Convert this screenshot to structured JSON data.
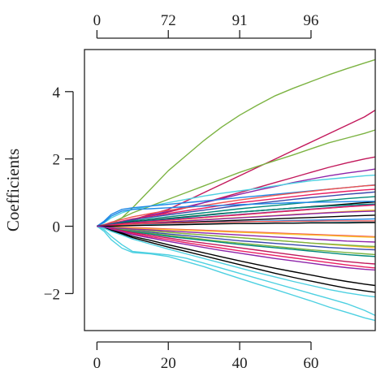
{
  "chart_data": {
    "type": "line",
    "title": "",
    "xlabel": "",
    "ylabel": "Coefficients",
    "xlim": [
      -3.5,
      78
    ],
    "ylim": [
      -3.1,
      5.25
    ],
    "x_ticks": [
      0,
      20,
      40,
      60
    ],
    "y_ticks": [
      -2,
      0,
      2,
      4
    ],
    "top_axis": {
      "tick_positions": [
        0,
        20,
        40,
        60
      ],
      "tick_labels": [
        "0",
        "72",
        "91",
        "96"
      ]
    },
    "grid": false,
    "legend": "none",
    "x": [
      0,
      2,
      4,
      7,
      10,
      15,
      20,
      25,
      30,
      35,
      40,
      45,
      50,
      55,
      60,
      65,
      70,
      75,
      78
    ],
    "series": [
      {
        "color": "#7cb342",
        "values": [
          0,
          0.02,
          0.05,
          0.25,
          0.55,
          1.1,
          1.65,
          2.1,
          2.55,
          2.95,
          3.3,
          3.6,
          3.88,
          4.1,
          4.3,
          4.5,
          4.68,
          4.85,
          4.95
        ]
      },
      {
        "color": "#c2185b",
        "values": [
          0,
          0.02,
          0.05,
          0.12,
          0.2,
          0.35,
          0.5,
          0.75,
          1.0,
          1.25,
          1.5,
          1.75,
          2.0,
          2.25,
          2.5,
          2.75,
          3.0,
          3.25,
          3.45
        ]
      },
      {
        "color": "#7cb342",
        "values": [
          0,
          0.03,
          0.1,
          0.25,
          0.4,
          0.6,
          0.8,
          1.0,
          1.2,
          1.4,
          1.6,
          1.78,
          1.95,
          2.12,
          2.3,
          2.48,
          2.62,
          2.76,
          2.86
        ]
      },
      {
        "color": "#c2185b",
        "values": [
          0,
          0.02,
          0.05,
          0.1,
          0.18,
          0.3,
          0.42,
          0.55,
          0.7,
          0.85,
          1.0,
          1.15,
          1.3,
          1.45,
          1.6,
          1.75,
          1.88,
          2.0,
          2.06
        ]
      },
      {
        "color": "#8e24aa",
        "values": [
          0,
          0.02,
          0.06,
          0.12,
          0.2,
          0.32,
          0.45,
          0.58,
          0.7,
          0.82,
          0.95,
          1.07,
          1.18,
          1.3,
          1.4,
          1.5,
          1.58,
          1.65,
          1.7
        ]
      },
      {
        "color": "#4dd0e1",
        "values": [
          0,
          0.1,
          0.25,
          0.4,
          0.5,
          0.6,
          0.7,
          0.8,
          0.9,
          0.98,
          1.05,
          1.12,
          1.2,
          1.28,
          1.35,
          1.4,
          1.45,
          1.5,
          1.52
        ]
      },
      {
        "color": "#1e88e5",
        "values": [
          0,
          0.15,
          0.35,
          0.5,
          0.55,
          0.6,
          0.65,
          0.7,
          0.75,
          0.8,
          0.85,
          0.9,
          0.95,
          1.0,
          1.05,
          1.1,
          1.15,
          1.2,
          1.23
        ]
      },
      {
        "color": "#ef5350",
        "values": [
          0,
          0.05,
          0.12,
          0.2,
          0.28,
          0.38,
          0.47,
          0.55,
          0.62,
          0.7,
          0.78,
          0.85,
          0.92,
          0.98,
          1.04,
          1.1,
          1.15,
          1.2,
          1.22
        ]
      },
      {
        "color": "#e91e63",
        "values": [
          0,
          0.04,
          0.08,
          0.15,
          0.22,
          0.3,
          0.38,
          0.46,
          0.54,
          0.62,
          0.7,
          0.76,
          0.82,
          0.88,
          0.94,
          0.99,
          1.04,
          1.08,
          1.1
        ]
      },
      {
        "color": "#3949ab",
        "values": [
          0,
          0.03,
          0.07,
          0.13,
          0.2,
          0.27,
          0.34,
          0.41,
          0.48,
          0.55,
          0.62,
          0.68,
          0.74,
          0.8,
          0.85,
          0.9,
          0.95,
          0.99,
          1.02
        ]
      },
      {
        "color": "#00897b",
        "values": [
          0,
          0.03,
          0.06,
          0.11,
          0.16,
          0.22,
          0.28,
          0.34,
          0.4,
          0.46,
          0.52,
          0.57,
          0.62,
          0.67,
          0.72,
          0.77,
          0.82,
          0.86,
          0.88
        ]
      },
      {
        "color": "#000000",
        "values": [
          0,
          0.02,
          0.05,
          0.09,
          0.13,
          0.18,
          0.23,
          0.28,
          0.33,
          0.38,
          0.42,
          0.46,
          0.5,
          0.54,
          0.58,
          0.62,
          0.66,
          0.7,
          0.72
        ]
      },
      {
        "color": "#7cb342",
        "values": [
          0,
          0.02,
          0.04,
          0.07,
          0.1,
          0.14,
          0.18,
          0.22,
          0.26,
          0.3,
          0.34,
          0.38,
          0.42,
          0.46,
          0.5,
          0.54,
          0.58,
          0.62,
          0.64
        ]
      },
      {
        "color": "#fbc02d",
        "values": [
          0,
          0.02,
          0.04,
          0.06,
          0.08,
          0.11,
          0.14,
          0.17,
          0.2,
          0.23,
          0.26,
          0.29,
          0.32,
          0.35,
          0.38,
          0.41,
          0.44,
          0.47,
          0.48
        ]
      },
      {
        "color": "#8e24aa",
        "values": [
          0,
          0.01,
          0.03,
          0.05,
          0.07,
          0.1,
          0.13,
          0.16,
          0.19,
          0.22,
          0.25,
          0.28,
          0.31,
          0.34,
          0.37,
          0.4,
          0.42,
          0.44,
          0.45
        ]
      },
      {
        "color": "#000000",
        "values": [
          0,
          0.01,
          0.02,
          0.04,
          0.06,
          0.08,
          0.1,
          0.12,
          0.14,
          0.16,
          0.18,
          0.2,
          0.22,
          0.24,
          0.26,
          0.28,
          0.3,
          0.32,
          0.33
        ]
      },
      {
        "color": "#1e88e5",
        "values": [
          0,
          0.01,
          0.02,
          0.03,
          0.04,
          0.06,
          0.08,
          0.1,
          0.12,
          0.13,
          0.14,
          0.15,
          0.16,
          0.17,
          0.18,
          0.19,
          0.2,
          0.21,
          0.22
        ]
      },
      {
        "color": "#4dd0e1",
        "values": [
          0,
          0.0,
          0.01,
          0.02,
          0.03,
          0.04,
          0.05,
          0.06,
          0.07,
          0.08,
          0.08,
          0.09,
          0.1,
          0.1,
          0.11,
          0.11,
          0.12,
          0.12,
          0.12
        ]
      },
      {
        "color": "#ef5350",
        "values": [
          0,
          -0.01,
          -0.02,
          -0.03,
          -0.04,
          -0.06,
          -0.08,
          -0.1,
          -0.12,
          -0.14,
          -0.16,
          -0.18,
          -0.2,
          -0.22,
          -0.24,
          -0.26,
          -0.28,
          -0.3,
          -0.31
        ]
      },
      {
        "color": "#fbc02d",
        "values": [
          0,
          -0.02,
          -0.04,
          -0.07,
          -0.1,
          -0.14,
          -0.18,
          -0.22,
          -0.26,
          -0.3,
          -0.34,
          -0.38,
          -0.42,
          -0.46,
          -0.5,
          -0.54,
          -0.58,
          -0.62,
          -0.64
        ]
      },
      {
        "color": "#3949ab",
        "values": [
          0,
          -0.02,
          -0.05,
          -0.09,
          -0.13,
          -0.18,
          -0.23,
          -0.28,
          -0.33,
          -0.38,
          -0.43,
          -0.47,
          -0.51,
          -0.55,
          -0.59,
          -0.63,
          -0.66,
          -0.69,
          -0.7
        ]
      },
      {
        "color": "#7cb342",
        "values": [
          0,
          -0.03,
          -0.06,
          -0.1,
          -0.15,
          -0.21,
          -0.27,
          -0.33,
          -0.39,
          -0.45,
          -0.5,
          -0.55,
          -0.6,
          -0.65,
          -0.7,
          -0.74,
          -0.78,
          -0.82,
          -0.84
        ]
      },
      {
        "color": "#00897b",
        "values": [
          0,
          -0.03,
          -0.07,
          -0.12,
          -0.17,
          -0.23,
          -0.3,
          -0.36,
          -0.42,
          -0.48,
          -0.54,
          -0.59,
          -0.64,
          -0.69,
          -0.74,
          -0.79,
          -0.84,
          -0.88,
          -0.9
        ]
      },
      {
        "color": "#c2185b",
        "values": [
          0,
          -0.03,
          -0.07,
          -0.13,
          -0.19,
          -0.27,
          -0.35,
          -0.43,
          -0.5,
          -0.57,
          -0.64,
          -0.71,
          -0.78,
          -0.85,
          -0.92,
          -0.99,
          -1.05,
          -1.1,
          -1.12
        ]
      },
      {
        "color": "#e91e63",
        "values": [
          0,
          -0.04,
          -0.09,
          -0.15,
          -0.22,
          -0.31,
          -0.4,
          -0.49,
          -0.57,
          -0.65,
          -0.73,
          -0.8,
          -0.87,
          -0.94,
          -1.01,
          -1.08,
          -1.15,
          -1.21,
          -1.24
        ]
      },
      {
        "color": "#8e24aa",
        "values": [
          0,
          -0.04,
          -0.1,
          -0.17,
          -0.25,
          -0.35,
          -0.45,
          -0.54,
          -0.63,
          -0.72,
          -0.8,
          -0.88,
          -0.96,
          -1.03,
          -1.1,
          -1.17,
          -1.23,
          -1.28,
          -1.3
        ]
      },
      {
        "color": "#000000",
        "values": [
          0,
          -0.05,
          -0.12,
          -0.2,
          -0.3,
          -0.42,
          -0.55,
          -0.67,
          -0.79,
          -0.91,
          -1.03,
          -1.14,
          -1.25,
          -1.35,
          -1.45,
          -1.55,
          -1.64,
          -1.72,
          -1.76
        ]
      },
      {
        "color": "#000000",
        "values": [
          0,
          -0.05,
          -0.13,
          -0.23,
          -0.34,
          -0.48,
          -0.62,
          -0.75,
          -0.88,
          -1.01,
          -1.14,
          -1.27,
          -1.4,
          -1.52,
          -1.63,
          -1.74,
          -1.84,
          -1.92,
          -1.96
        ]
      },
      {
        "color": "#4dd0e1",
        "values": [
          0,
          -0.06,
          -0.15,
          -0.26,
          -0.38,
          -0.53,
          -0.68,
          -0.82,
          -0.96,
          -1.1,
          -1.24,
          -1.38,
          -1.51,
          -1.64,
          -1.76,
          -1.88,
          -1.98,
          -2.06,
          -2.1
        ]
      },
      {
        "color": "#4dd0e1",
        "values": [
          0,
          -0.1,
          -0.3,
          -0.55,
          -0.75,
          -0.8,
          -0.85,
          -0.95,
          -1.1,
          -1.25,
          -1.4,
          -1.55,
          -1.7,
          -1.85,
          -2.0,
          -2.15,
          -2.3,
          -2.5,
          -2.65
        ]
      },
      {
        "color": "#4dd0e1",
        "values": [
          0,
          -0.15,
          -0.4,
          -0.65,
          -0.78,
          -0.82,
          -0.9,
          -1.05,
          -1.2,
          -1.38,
          -1.55,
          -1.72,
          -1.88,
          -2.05,
          -2.22,
          -2.4,
          -2.56,
          -2.72,
          -2.8
        ]
      },
      {
        "color": "#1e88e5",
        "values": [
          0,
          0.12,
          0.3,
          0.45,
          0.5,
          0.52,
          0.55,
          0.58,
          0.6,
          0.62,
          0.64,
          0.66,
          0.68,
          0.7,
          0.71,
          0.72,
          0.73,
          0.74,
          0.74
        ]
      },
      {
        "color": "#ef5350",
        "values": [
          0,
          0.02,
          0.03,
          0.05,
          0.06,
          0.08,
          0.09,
          0.1,
          0.11,
          0.12,
          0.13,
          0.14,
          0.14,
          0.15,
          0.15,
          0.16,
          0.16,
          0.16,
          0.16
        ]
      },
      {
        "color": "#00897b",
        "values": [
          0,
          0.02,
          0.05,
          0.08,
          0.12,
          0.17,
          0.22,
          0.27,
          0.32,
          0.37,
          0.42,
          0.46,
          0.5,
          0.54,
          0.57,
          0.6,
          0.63,
          0.65,
          0.66
        ]
      },
      {
        "color": "#fbc02d",
        "values": [
          0,
          -0.01,
          -0.02,
          -0.04,
          -0.06,
          -0.08,
          -0.1,
          -0.12,
          -0.14,
          -0.16,
          -0.18,
          -0.2,
          -0.22,
          -0.24,
          -0.26,
          -0.28,
          -0.3,
          -0.32,
          -0.33
        ]
      },
      {
        "color": "#3949ab",
        "values": [
          0,
          0.02,
          0.05,
          0.08,
          0.11,
          0.15,
          0.19,
          0.23,
          0.27,
          0.31,
          0.35,
          0.39,
          0.43,
          0.47,
          0.51,
          0.55,
          0.59,
          0.62,
          0.64
        ]
      },
      {
        "color": "#7cb342",
        "values": [
          0,
          -0.02,
          -0.04,
          -0.07,
          -0.1,
          -0.14,
          -0.18,
          -0.22,
          -0.26,
          -0.3,
          -0.34,
          -0.38,
          -0.42,
          -0.46,
          -0.5,
          -0.53,
          -0.56,
          -0.59,
          -0.6
        ]
      },
      {
        "color": "#e91e63",
        "values": [
          0,
          0.02,
          0.04,
          0.07,
          0.1,
          0.14,
          0.18,
          0.22,
          0.26,
          0.3,
          0.34,
          0.38,
          0.42,
          0.46,
          0.5,
          0.54,
          0.58,
          0.61,
          0.63
        ]
      },
      {
        "color": "#000000",
        "values": [
          0,
          0.0,
          0.0,
          0.01,
          0.02,
          0.03,
          0.04,
          0.05,
          0.06,
          0.07,
          0.08,
          0.08,
          0.09,
          0.09,
          0.1,
          0.1,
          0.1,
          0.11,
          0.11
        ]
      },
      {
        "color": "#8e24aa",
        "values": [
          0,
          -0.02,
          -0.04,
          -0.06,
          -0.08,
          -0.11,
          -0.14,
          -0.17,
          -0.2,
          -0.23,
          -0.26,
          -0.29,
          -0.32,
          -0.35,
          -0.38,
          -0.41,
          -0.44,
          -0.46,
          -0.47
        ]
      }
    ]
  }
}
